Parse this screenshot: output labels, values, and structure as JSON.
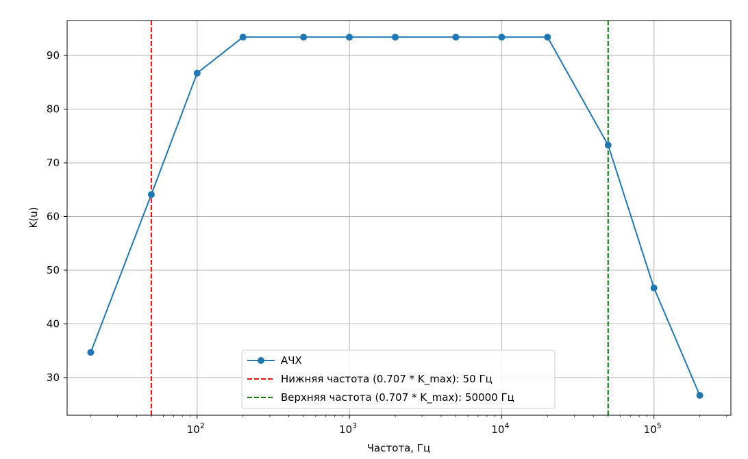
{
  "chart_data": {
    "type": "line",
    "xscale": "log",
    "xlabel": "Частота, Гц",
    "ylabel": "K(u)",
    "xlim": [
      14,
      320000
    ],
    "ylim": [
      23,
      96.5
    ],
    "grid": true,
    "legend_position": "bottom-center",
    "x_ticks": [
      {
        "value": 100,
        "base": "10",
        "exp": "2"
      },
      {
        "value": 1000,
        "base": "10",
        "exp": "3"
      },
      {
        "value": 10000,
        "base": "10",
        "exp": "4"
      },
      {
        "value": 100000,
        "base": "10",
        "exp": "5"
      }
    ],
    "y_ticks": [
      30,
      40,
      50,
      60,
      70,
      80,
      90
    ],
    "series": [
      {
        "name": "АЧХ",
        "color": "#1f77b4",
        "x": [
          20,
          50,
          100,
          200,
          500,
          1000,
          2000,
          5000,
          10000,
          20000,
          50000,
          100000,
          200000
        ],
        "y": [
          34.7,
          64.1,
          86.7,
          93.4,
          93.4,
          93.4,
          93.4,
          93.4,
          93.4,
          93.4,
          73.3,
          46.7,
          26.7
        ]
      }
    ],
    "vlines": [
      {
        "name": "Нижняя частота (0.707 * K_max): 50 Гц",
        "x": 50,
        "color": "#ff0000"
      },
      {
        "name": "Верхняя частота (0.707 * K_max): 50000 Гц",
        "x": 50000,
        "color": "#008000"
      }
    ]
  }
}
